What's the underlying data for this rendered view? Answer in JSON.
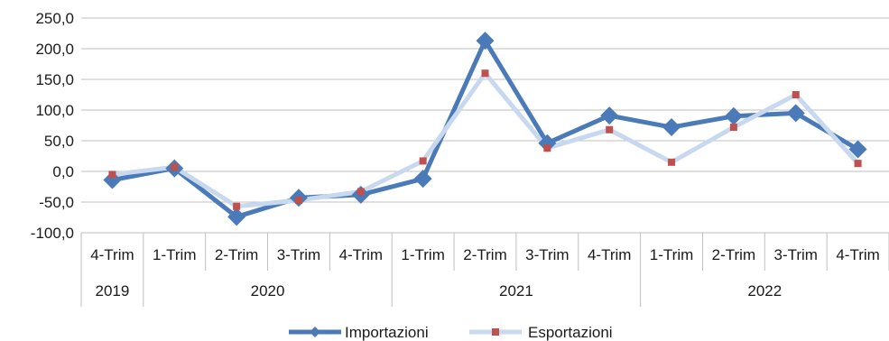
{
  "chart_data": {
    "type": "line",
    "categories": [
      "4-Trim",
      "1-Trim",
      "2-Trim",
      "3-Trim",
      "4-Trim",
      "1-Trim",
      "2-Trim",
      "3-Trim",
      "4-Trim",
      "1-Trim",
      "2-Trim",
      "3-Trim",
      "4-Trim"
    ],
    "year_groups": [
      {
        "label": "2019",
        "span": 1
      },
      {
        "label": "2020",
        "span": 4
      },
      {
        "label": "2021",
        "span": 4
      },
      {
        "label": "2022",
        "span": 4
      }
    ],
    "series": [
      {
        "name": "Importazioni",
        "color": "#4a7ab8",
        "marker": "diamond",
        "values": [
          -14,
          5,
          -74,
          -43,
          -38,
          -12,
          213,
          46,
          91,
          72,
          90,
          95,
          36
        ]
      },
      {
        "name": "Esportazioni",
        "color": "#c8d8ee",
        "marker_color": "#c0504d",
        "marker": "square",
        "values": [
          -5,
          7,
          -57,
          -47,
          -33,
          17,
          160,
          38,
          68,
          15,
          72,
          125,
          13
        ]
      }
    ],
    "ylim": [
      -100,
      250
    ],
    "yticks": [
      "250,0",
      "200,0",
      "150,0",
      "100,0",
      "50,0",
      "0,0",
      "-50,0",
      "-100,0"
    ],
    "grid": true,
    "legend_position": "bottom"
  }
}
